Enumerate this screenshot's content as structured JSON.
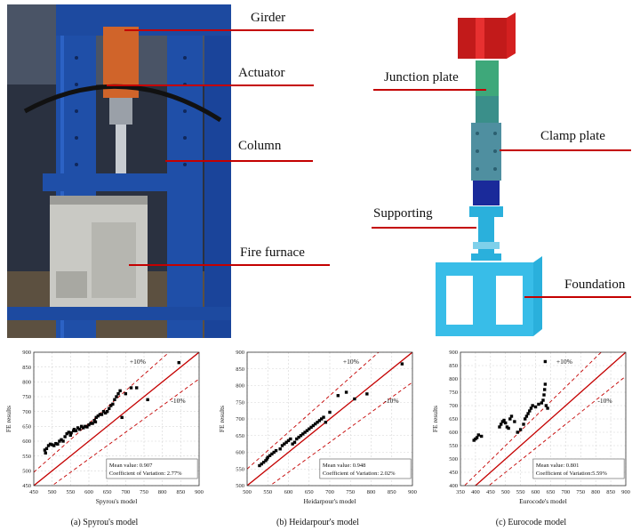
{
  "photo": {
    "labels": {
      "girder": "Girder",
      "actuator": "Actuator",
      "column": "Column",
      "fire_furnace": "Fire furnace"
    }
  },
  "model": {
    "labels": {
      "junction_plate": "Junction plate",
      "clamp_plate": "Clamp plate",
      "supporting": "Supporting",
      "foundation": "Foundation"
    }
  },
  "colors": {
    "accent_red": "#c40000",
    "frame_blue": "#1f4fa8",
    "model_red": "#d42020",
    "model_teal": "#3a8f8a",
    "model_navy": "#1a2a9a",
    "model_cyan": "#2ab0dc"
  },
  "chart_data": [
    {
      "type": "scatter",
      "caption": "(a) Spyrou's model",
      "xlabel": "Spyrou's model",
      "ylabel": "FE results",
      "xlim": [
        450,
        900
      ],
      "ylim": [
        450,
        900
      ],
      "xticks": [
        "450",
        "500",
        "550",
        "600",
        "650",
        "700",
        "750",
        "800",
        "850",
        "900"
      ],
      "yticks": [
        "450",
        "500",
        "550",
        "600",
        "650",
        "700",
        "750",
        "800",
        "850",
        "900"
      ],
      "plus_label": "+10%",
      "minus_label": "-10%",
      "mean_text": "Mean value: 0.907",
      "cov_text": "Coefficient of Variation: 2.77%",
      "points": [
        [
          480,
          570
        ],
        [
          482,
          560
        ],
        [
          485,
          575
        ],
        [
          490,
          585
        ],
        [
          495,
          590
        ],
        [
          500,
          588
        ],
        [
          505,
          585
        ],
        [
          510,
          592
        ],
        [
          515,
          590
        ],
        [
          520,
          600
        ],
        [
          525,
          605
        ],
        [
          530,
          600
        ],
        [
          535,
          615
        ],
        [
          540,
          625
        ],
        [
          545,
          630
        ],
        [
          550,
          620
        ],
        [
          552,
          628
        ],
        [
          558,
          635
        ],
        [
          560,
          640
        ],
        [
          565,
          635
        ],
        [
          570,
          645
        ],
        [
          575,
          640
        ],
        [
          580,
          650
        ],
        [
          585,
          645
        ],
        [
          590,
          650
        ],
        [
          595,
          648
        ],
        [
          600,
          655
        ],
        [
          605,
          660
        ],
        [
          610,
          660
        ],
        [
          615,
          670
        ],
        [
          618,
          665
        ],
        [
          620,
          680
        ],
        [
          625,
          685
        ],
        [
          630,
          690
        ],
        [
          635,
          690
        ],
        [
          640,
          700
        ],
        [
          645,
          695
        ],
        [
          650,
          700
        ],
        [
          655,
          710
        ],
        [
          660,
          720
        ],
        [
          665,
          725
        ],
        [
          670,
          740
        ],
        [
          675,
          750
        ],
        [
          680,
          760
        ],
        [
          685,
          770
        ],
        [
          690,
          680
        ],
        [
          700,
          760
        ],
        [
          715,
          780
        ],
        [
          730,
          780
        ],
        [
          760,
          740
        ],
        [
          845,
          865
        ]
      ]
    },
    {
      "type": "scatter",
      "caption": "(b) Heidarpour's model",
      "xlabel": "Heidarpour's model",
      "ylabel": "FE results",
      "xlim": [
        500,
        900
      ],
      "ylim": [
        500,
        900
      ],
      "xticks": [
        "500",
        "550",
        "600",
        "650",
        "700",
        "750",
        "800",
        "850",
        "900"
      ],
      "yticks": [
        "500",
        "550",
        "600",
        "650",
        "700",
        "750",
        "800",
        "850",
        "900"
      ],
      "plus_label": "+10%",
      "minus_label": "-10%",
      "mean_text": "Mean value: 0.948",
      "cov_text": "Coefficient of Variation: 2.02%",
      "points": [
        [
          530,
          560
        ],
        [
          535,
          565
        ],
        [
          540,
          570
        ],
        [
          545,
          575
        ],
        [
          548,
          580
        ],
        [
          550,
          585
        ],
        [
          555,
          590
        ],
        [
          560,
          595
        ],
        [
          565,
          600
        ],
        [
          570,
          605
        ],
        [
          580,
          610
        ],
        [
          585,
          620
        ],
        [
          590,
          625
        ],
        [
          595,
          630
        ],
        [
          600,
          635
        ],
        [
          605,
          640
        ],
        [
          610,
          625
        ],
        [
          615,
          630
        ],
        [
          620,
          640
        ],
        [
          625,
          645
        ],
        [
          630,
          650
        ],
        [
          635,
          655
        ],
        [
          640,
          660
        ],
        [
          645,
          665
        ],
        [
          650,
          670
        ],
        [
          655,
          675
        ],
        [
          660,
          680
        ],
        [
          665,
          685
        ],
        [
          670,
          690
        ],
        [
          675,
          695
        ],
        [
          680,
          700
        ],
        [
          685,
          705
        ],
        [
          690,
          690
        ],
        [
          700,
          720
        ],
        [
          720,
          770
        ],
        [
          740,
          780
        ],
        [
          760,
          760
        ],
        [
          790,
          775
        ],
        [
          875,
          865
        ]
      ]
    },
    {
      "type": "scatter",
      "caption": "(c) Eurocode model",
      "xlabel": "Eurocode's model",
      "ylabel": "FE results",
      "xlim": [
        350,
        900
      ],
      "ylim": [
        400,
        900
      ],
      "xticks": [
        "350",
        "400",
        "450",
        "500",
        "550",
        "600",
        "650",
        "700",
        "750",
        "800",
        "850",
        "900"
      ],
      "yticks": [
        "400",
        "450",
        "500",
        "550",
        "600",
        "650",
        "700",
        "750",
        "800",
        "850",
        "900"
      ],
      "plus_label": "+10%",
      "minus_label": "-10%",
      "mean_text": "Mean value: 0.801",
      "cov_text": "Coefficient of Variation:5.59%",
      "points": [
        [
          395,
          570
        ],
        [
          400,
          575
        ],
        [
          405,
          580
        ],
        [
          410,
          590
        ],
        [
          420,
          585
        ],
        [
          480,
          620
        ],
        [
          485,
          630
        ],
        [
          490,
          640
        ],
        [
          495,
          645
        ],
        [
          500,
          635
        ],
        [
          505,
          620
        ],
        [
          510,
          615
        ],
        [
          515,
          650
        ],
        [
          520,
          660
        ],
        [
          530,
          640
        ],
        [
          540,
          600
        ],
        [
          550,
          610
        ],
        [
          560,
          630
        ],
        [
          565,
          650
        ],
        [
          570,
          660
        ],
        [
          575,
          670
        ],
        [
          580,
          680
        ],
        [
          585,
          690
        ],
        [
          590,
          700
        ],
        [
          600,
          695
        ],
        [
          610,
          705
        ],
        [
          620,
          710
        ],
        [
          625,
          720
        ],
        [
          628,
          740
        ],
        [
          630,
          760
        ],
        [
          632,
          780
        ],
        [
          635,
          700
        ],
        [
          640,
          690
        ],
        [
          632,
          865
        ]
      ]
    }
  ]
}
